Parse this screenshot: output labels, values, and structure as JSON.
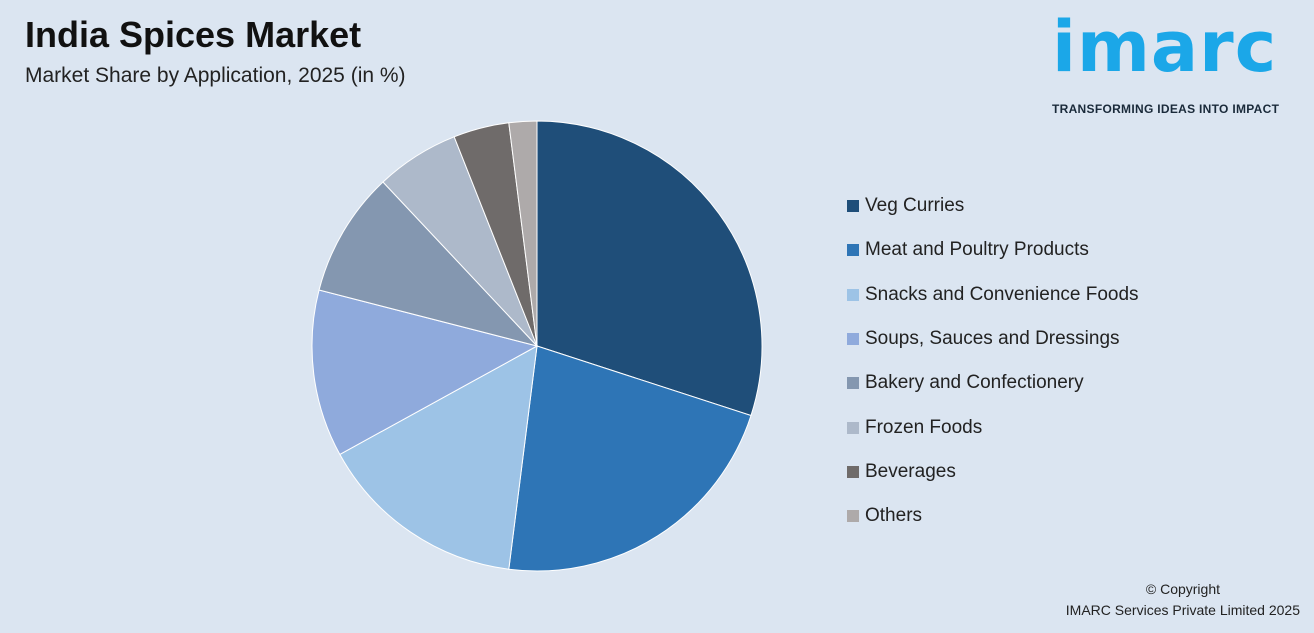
{
  "header": {
    "title": "India Spices Market",
    "subtitle": "Market Share by Application, 2025 (in %)"
  },
  "logo": {
    "word": "imarc",
    "tagline": "TRANSFORMING IDEAS INTO IMPACT"
  },
  "footer": {
    "copyright": "© Copyright",
    "company": "IMARC Services Private Limited 2025"
  },
  "chart_data": {
    "type": "pie",
    "title": "India Spices Market",
    "subtitle": "Market Share by Application, 2025 (in %)",
    "legend_position": "right",
    "start_angle": "12 o'clock, clockwise",
    "categories": [
      "Veg Curries",
      "Meat and Poultry Products",
      "Snacks and Convenience Foods",
      "Soups, Sauces and Dressings",
      "Bakery and Confectionery",
      "Frozen Foods",
      "Beverages",
      "Others"
    ],
    "values": [
      30,
      22,
      15,
      12,
      9,
      6,
      4,
      2
    ],
    "colors": [
      "#1f4e79",
      "#2e75b6",
      "#9dc3e6",
      "#8faadc",
      "#8497b0",
      "#adb9ca",
      "#6f6b6a",
      "#aeaaaa"
    ]
  }
}
